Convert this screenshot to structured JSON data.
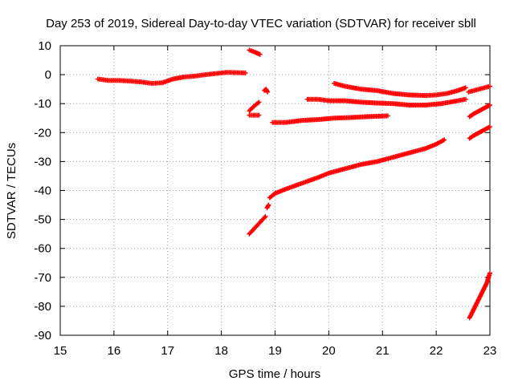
{
  "chart_data": {
    "type": "scatter",
    "title": "Day 253 of 2019, Sidereal Day-to-day VTEC variation (SDTVAR) for receiver sbll",
    "xlabel": "GPS time / hours",
    "ylabel": "SDTVAR / TECUs",
    "xlim": [
      15,
      23
    ],
    "ylim": [
      -90,
      10
    ],
    "xticks": [
      15,
      16,
      17,
      18,
      19,
      20,
      21,
      22,
      23
    ],
    "yticks": [
      10,
      0,
      -10,
      -20,
      -30,
      -40,
      -50,
      -60,
      -70,
      -80,
      -90
    ],
    "grid": true,
    "marker": "+",
    "color": "#ff0000",
    "series": [
      {
        "x": [
          15.7,
          15.9,
          16.1,
          16.3,
          16.5,
          16.7,
          16.9,
          17.1,
          17.3,
          17.5,
          17.7,
          17.9,
          18.1,
          18.3,
          18.45
        ],
        "y": [
          -1.5,
          -2,
          -2,
          -2.2,
          -2.5,
          -3,
          -2.8,
          -1.5,
          -0.8,
          -0.5,
          0,
          0.4,
          0.8,
          0.7,
          0.6
        ]
      },
      {
        "x": [
          18.52,
          18.62,
          18.72
        ],
        "y": [
          8.5,
          7.8,
          7
        ]
      },
      {
        "x": [
          18.52,
          18.6,
          18.7
        ],
        "y": [
          -12.5,
          -11,
          -9.5
        ]
      },
      {
        "x": [
          18.52,
          18.6,
          18.7
        ],
        "y": [
          -14,
          -14,
          -14
        ]
      },
      {
        "x": [
          18.8,
          18.83,
          18.86
        ],
        "y": [
          -5.5,
          -5,
          -6
        ]
      },
      {
        "x": [
          18.95,
          19.2,
          19.5,
          19.8,
          20.1,
          20.4,
          20.7,
          21.0,
          21.1
        ],
        "y": [
          -16.5,
          -16.5,
          -15.8,
          -15.5,
          -15,
          -14.8,
          -14.5,
          -14.3,
          -14.2
        ]
      },
      {
        "x": [
          18.52,
          18.62,
          18.72,
          18.82
        ],
        "y": [
          -55,
          -53,
          -51,
          -49
        ]
      },
      {
        "x": [
          18.85,
          18.88
        ],
        "y": [
          -46,
          -45
        ]
      },
      {
        "x": [
          18.9,
          19.0,
          19.2,
          19.5,
          19.8,
          20.0,
          20.3,
          20.6,
          20.9,
          21.2,
          21.5,
          21.8,
          22.0,
          22.15
        ],
        "y": [
          -42.5,
          -41,
          -39.5,
          -37.5,
          -35.5,
          -34,
          -32.5,
          -31,
          -30,
          -28.5,
          -27,
          -25.5,
          -24,
          -22.5
        ]
      },
      {
        "x": [
          19.6,
          19.8,
          20.0,
          20.3,
          20.6,
          20.9,
          21.2,
          21.5,
          21.8,
          22.1,
          22.4,
          22.55
        ],
        "y": [
          -8.5,
          -8.5,
          -9,
          -9,
          -9.5,
          -9.8,
          -10,
          -10.5,
          -10.5,
          -10,
          -9,
          -8.5
        ]
      },
      {
        "x": [
          20.1,
          20.3,
          20.6,
          20.9,
          21.2,
          21.5,
          21.8,
          22.0,
          22.2,
          22.4,
          22.55
        ],
        "y": [
          -3,
          -4,
          -5,
          -5.5,
          -6.5,
          -7,
          -7.2,
          -7,
          -6.5,
          -5.5,
          -4.5
        ]
      },
      {
        "x": [
          22.6,
          22.7,
          22.8,
          22.9,
          23.0
        ],
        "y": [
          -6,
          -5.5,
          -5,
          -4.5,
          -4
        ]
      },
      {
        "x": [
          22.62,
          22.7,
          22.8,
          22.9,
          23.0
        ],
        "y": [
          -14.5,
          -13.5,
          -12.5,
          -11.5,
          -10.5
        ]
      },
      {
        "x": [
          22.62,
          22.7,
          22.8,
          22.9,
          23.0
        ],
        "y": [
          -22,
          -21,
          -20,
          -19,
          -18
        ]
      },
      {
        "x": [
          22.62,
          22.7,
          22.78,
          22.86,
          22.94,
          23.0
        ],
        "y": [
          -84,
          -81,
          -78,
          -75,
          -72,
          -68.5
        ]
      }
    ]
  }
}
